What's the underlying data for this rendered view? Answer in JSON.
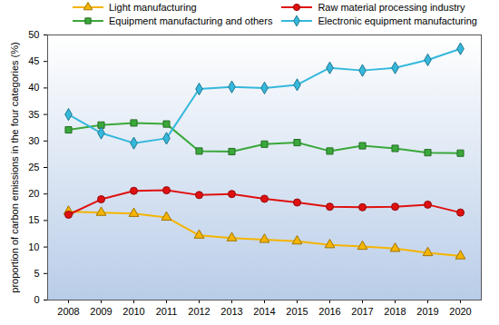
{
  "chart_data": {
    "type": "line",
    "y_label": "proportion of carbon emissions in the four categories (%)",
    "categories": [
      "2008",
      "2009",
      "2010",
      "2011",
      "2012",
      "2013",
      "2014",
      "2015",
      "2016",
      "2017",
      "2018",
      "2019",
      "2020"
    ],
    "series": [
      {
        "name": "Light manufacturing",
        "color": "#f5b400",
        "marker": "triangle",
        "values": [
          16.7,
          16.5,
          16.3,
          15.6,
          12.2,
          11.7,
          11.4,
          11.1,
          10.4,
          10.1,
          9.7,
          8.9,
          8.3
        ]
      },
      {
        "name": "Raw material processing industry",
        "color": "#e01010",
        "marker": "circle",
        "values": [
          16.1,
          19.0,
          20.6,
          20.7,
          19.8,
          20.0,
          19.1,
          18.4,
          17.6,
          17.5,
          17.6,
          18.0,
          16.5
        ]
      },
      {
        "name": "Equipment manufacturing and others",
        "color": "#3aa83a",
        "marker": "square",
        "values": [
          32.1,
          33.0,
          33.4,
          33.2,
          28.1,
          28.0,
          29.4,
          29.7,
          28.1,
          29.1,
          28.6,
          27.8,
          27.7
        ]
      },
      {
        "name": "Electronic equipment manufacturing",
        "color": "#35b8dc",
        "marker": "diamond",
        "values": [
          35.0,
          31.5,
          29.6,
          30.5,
          39.8,
          40.2,
          40.0,
          40.6,
          43.8,
          43.3,
          43.8,
          45.3,
          47.4
        ]
      }
    ],
    "ylim": [
      0,
      50
    ],
    "yticks": [
      0,
      5,
      10,
      15,
      20,
      25,
      30,
      35,
      40,
      45,
      50
    ],
    "grid": false,
    "legend": "top"
  }
}
